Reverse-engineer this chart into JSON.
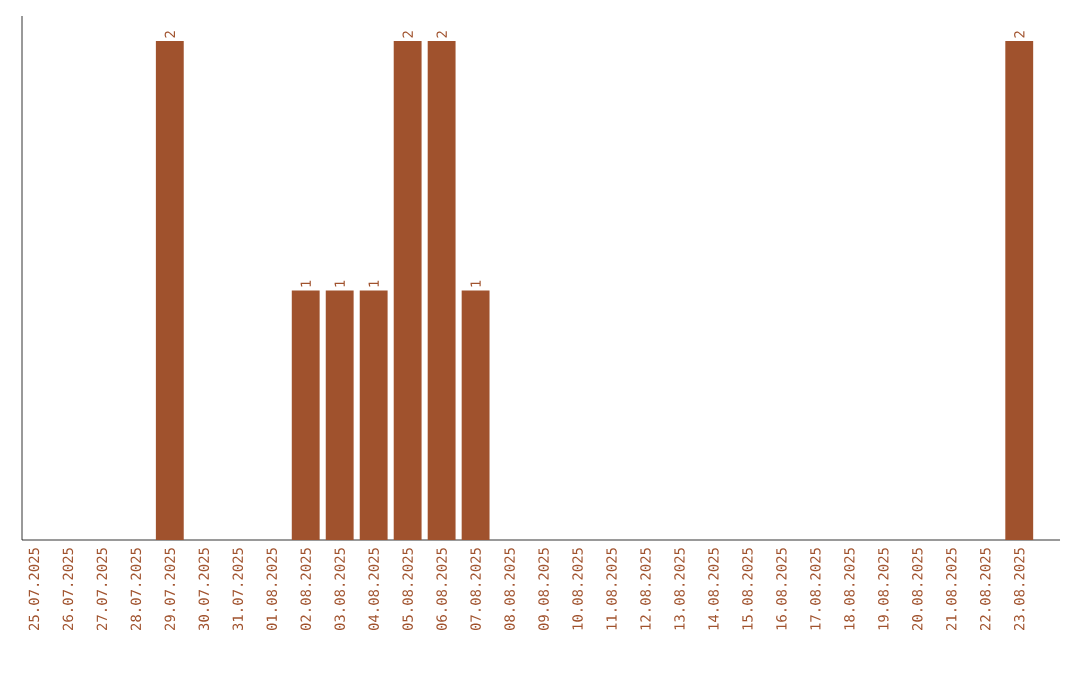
{
  "chart_data": {
    "type": "bar",
    "categories": [
      "25.07.2025",
      "26.07.2025",
      "27.07.2025",
      "28.07.2025",
      "29.07.2025",
      "30.07.2025",
      "31.07.2025",
      "01.08.2025",
      "02.08.2025",
      "03.08.2025",
      "04.08.2025",
      "05.08.2025",
      "06.08.2025",
      "07.08.2025",
      "08.08.2025",
      "09.08.2025",
      "10.08.2025",
      "11.08.2025",
      "12.08.2025",
      "13.08.2025",
      "14.08.2025",
      "15.08.2025",
      "16.08.2025",
      "17.08.2025",
      "18.08.2025",
      "19.08.2025",
      "20.08.2025",
      "21.08.2025",
      "22.08.2025",
      "23.08.2025"
    ],
    "values": [
      0,
      0,
      0,
      0,
      2,
      0,
      0,
      0,
      1,
      1,
      1,
      2,
      2,
      1,
      0,
      0,
      0,
      0,
      0,
      0,
      0,
      0,
      0,
      0,
      0,
      0,
      0,
      0,
      0,
      2
    ],
    "value_labels": [
      null,
      null,
      null,
      null,
      "2",
      null,
      null,
      null,
      "1",
      "1",
      "1",
      "2",
      "2",
      "1",
      null,
      null,
      null,
      null,
      null,
      null,
      null,
      null,
      null,
      null,
      null,
      null,
      null,
      null,
      null,
      "2"
    ],
    "color": "#a0522d",
    "ylim": [
      0,
      2.1
    ],
    "tick_labels": "x"
  }
}
